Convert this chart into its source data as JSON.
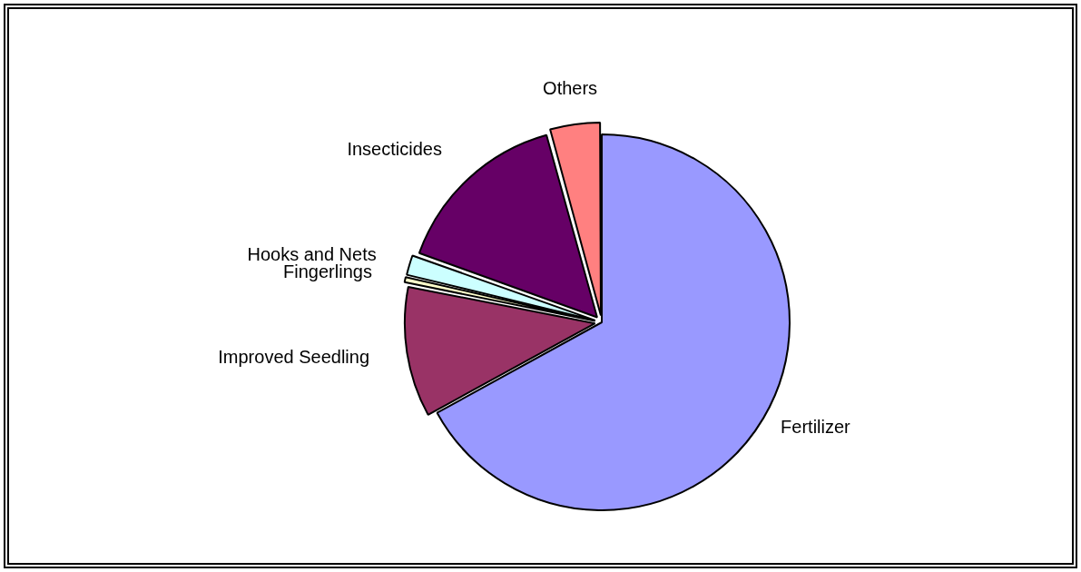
{
  "chart_data": {
    "type": "pie",
    "categories": [
      "Fertilizer",
      "Improved Seedling",
      "Fingerlings",
      "Hooks and Nets",
      "Insecticides",
      "Others"
    ],
    "values": [
      67,
      11.1,
      0.6,
      1.8,
      15.2,
      4.3
    ],
    "colors": [
      "#9999ff",
      "#993366",
      "#ffffcc",
      "#ccffff",
      "#660066",
      "#ff8080"
    ],
    "legend": false
  }
}
